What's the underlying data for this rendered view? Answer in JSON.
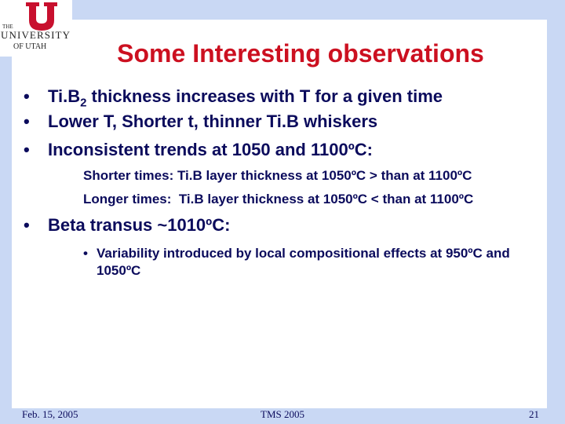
{
  "logo": {
    "line1": "THE",
    "line2": "UNIVERSITY",
    "line3": "OF UTAH"
  },
  "title": "Some Interesting observations",
  "bullets": [
    {
      "before": "Ti.B",
      "subscript": "2",
      "after": "thickness increases with T for a given time"
    },
    "Lower T, Shorter t, thinner Ti.B whiskers",
    "Inconsistent trends at 1050 and 1100ºC:"
  ],
  "sub_lines": [
    "Shorter times: Ti.B layer thickness at 1050ºC > than at 1100ºC",
    "Longer times:  Ti.B layer thickness at 1050ºC < than at 1100ºC"
  ],
  "bullet4": "Beta transus ~1010ºC:",
  "sub_bullet": "Variability introduced by local compositional effects at 950ºC and 1050ºC",
  "footer": {
    "date": "Feb. 15, 2005",
    "event": "TMS 2005",
    "page": "21"
  }
}
